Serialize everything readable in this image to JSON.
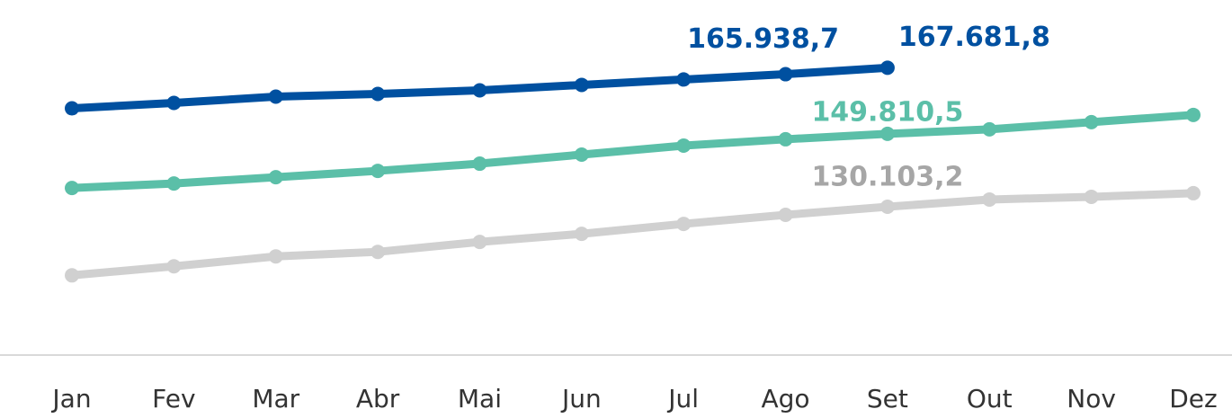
{
  "chart_data": {
    "type": "line",
    "categories": [
      "Jan",
      "Fev",
      "Mar",
      "Abr",
      "Mai",
      "Jun",
      "Jul",
      "Ago",
      "Set",
      "Out",
      "Nov",
      "Dez"
    ],
    "ylim": [
      90000,
      186000
    ],
    "series": [
      {
        "color": "#0050a0",
        "values": [
          156702,
          158166,
          159874,
          160606,
          161582,
          163046,
          164510,
          165938.7,
          167681.8,
          null,
          null,
          null
        ],
        "value_labels": [
          null,
          null,
          null,
          null,
          null,
          null,
          null,
          "165.938,7",
          "167.681,8",
          null,
          null,
          null
        ]
      },
      {
        "color": "#5bbfa8",
        "values": [
          135170,
          136390,
          138098,
          139806,
          141758,
          144198,
          146638,
          148346,
          149810.5,
          151030,
          152982,
          154934
        ],
        "value_labels": [
          null,
          null,
          null,
          null,
          null,
          null,
          null,
          null,
          "149.810,5",
          null,
          null,
          null
        ]
      },
      {
        "color": "#d0d0d0",
        "values": [
          111559,
          113999,
          116683,
          117903,
          120587,
          122783,
          125467,
          127907,
          130103.2,
          132055,
          132787,
          133763
        ],
        "value_labels": [
          null,
          null,
          null,
          null,
          null,
          null,
          null,
          null,
          "130.103,2",
          null,
          null,
          null
        ]
      }
    ]
  }
}
